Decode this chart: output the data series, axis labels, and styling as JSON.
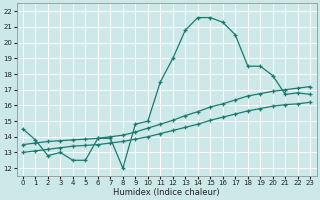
{
  "xlabel": "Humidex (Indice chaleur)",
  "bg_color": "#cce8e8",
  "grid_color": "#ffffff",
  "line_color": "#1a7a6e",
  "xlim": [
    -0.5,
    23.5
  ],
  "ylim": [
    11.5,
    22.5
  ],
  "yticks": [
    12,
    13,
    14,
    15,
    16,
    17,
    18,
    19,
    20,
    21,
    22
  ],
  "xticks": [
    0,
    1,
    2,
    3,
    4,
    5,
    6,
    7,
    8,
    9,
    10,
    11,
    12,
    13,
    14,
    15,
    16,
    17,
    18,
    19,
    20,
    21,
    22,
    23
  ],
  "line_main": {
    "x": [
      0,
      1,
      2,
      3,
      4,
      5,
      6,
      7,
      8,
      9,
      10,
      11,
      12,
      13,
      14,
      15,
      16,
      17,
      18,
      19,
      20,
      21,
      22,
      23
    ],
    "y": [
      14.5,
      13.8,
      12.8,
      13.0,
      12.5,
      12.5,
      13.9,
      13.9,
      12.0,
      14.8,
      15.0,
      17.5,
      19.0,
      20.8,
      21.6,
      21.6,
      21.3,
      20.5,
      18.5,
      18.5,
      17.9,
      16.7,
      16.8,
      16.7
    ]
  },
  "line_upper": {
    "x": [
      0,
      1,
      2,
      3,
      4,
      5,
      6,
      7,
      8,
      9,
      10,
      11,
      12,
      13,
      14,
      15,
      16,
      17,
      18,
      19,
      20,
      21,
      22,
      23
    ],
    "y": [
      13.5,
      13.6,
      13.7,
      13.75,
      13.8,
      13.85,
      13.9,
      14.0,
      14.1,
      14.3,
      14.55,
      14.8,
      15.05,
      15.35,
      15.6,
      15.9,
      16.1,
      16.35,
      16.6,
      16.75,
      16.9,
      17.0,
      17.1,
      17.2
    ]
  },
  "line_lower": {
    "x": [
      0,
      1,
      2,
      3,
      4,
      5,
      6,
      7,
      8,
      9,
      10,
      11,
      12,
      13,
      14,
      15,
      16,
      17,
      18,
      19,
      20,
      21,
      22,
      23
    ],
    "y": [
      13.0,
      13.1,
      13.2,
      13.3,
      13.4,
      13.45,
      13.5,
      13.6,
      13.7,
      13.85,
      14.0,
      14.2,
      14.4,
      14.6,
      14.8,
      15.05,
      15.25,
      15.45,
      15.65,
      15.8,
      15.95,
      16.05,
      16.1,
      16.2
    ]
  }
}
